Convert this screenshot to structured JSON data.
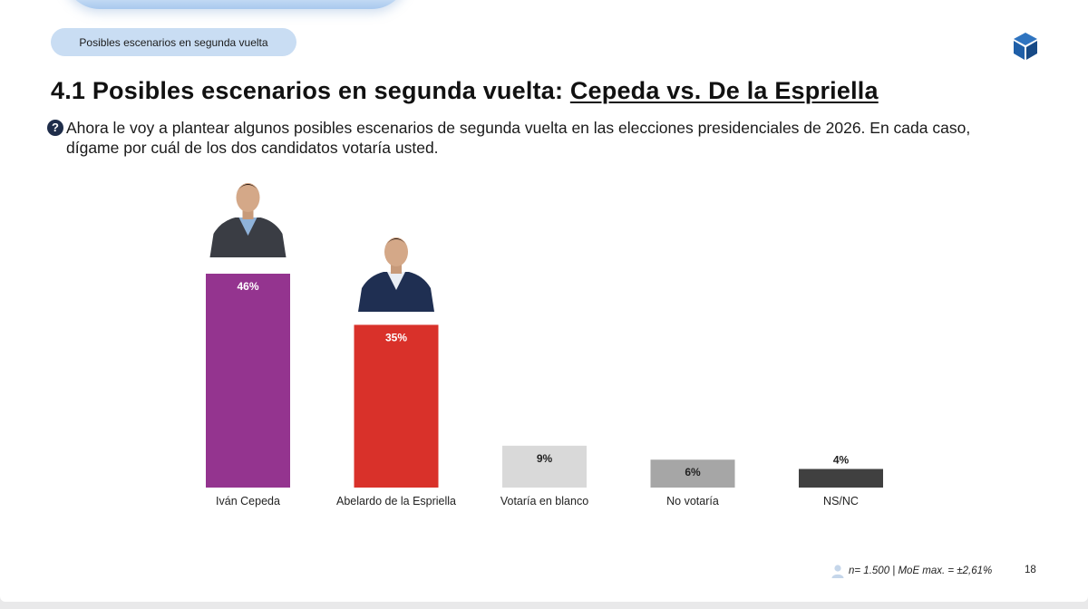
{
  "breadcrumb": "Posibles escenarios en segunda vuelta",
  "title": {
    "prefix": "4.1 Posibles escenarios en segunda vuelta: ",
    "highlight": "Cepeda vs. De la Espriella"
  },
  "question": {
    "icon": "question-circle-icon",
    "text": "Ahora le voy a plantear algunos posibles escenarios de segunda vuelta en las elecciones presidenciales de 2026. En cada caso, dígame por cuál de los dos candidatos votaría usted."
  },
  "chart_data": {
    "type": "bar",
    "categories": [
      "Iván Cepeda",
      "Abelardo de la Espriella",
      "Votaría en blanco",
      "No votaría",
      "NS/NC"
    ],
    "values": [
      46,
      35,
      9,
      6,
      4
    ],
    "value_labels": [
      "46%",
      "35%",
      "9%",
      "6%",
      "4%"
    ],
    "colors": [
      "#94348f",
      "#d9312a",
      "#d9d9d9",
      "#a6a6a6",
      "#404040"
    ],
    "label_colors": [
      "#ffffff",
      "#ffffff",
      "#222222",
      "#222222",
      "#222222"
    ],
    "ylim": [
      0,
      46
    ],
    "grid": false,
    "title": "",
    "xlabel": "",
    "ylabel": ""
  },
  "candidate_photos": [
    {
      "category": "Iván Cepeda",
      "icon": "candidate-photo-cepeda"
    },
    {
      "category": "Abelardo de la Espriella",
      "icon": "candidate-photo-espriella"
    }
  ],
  "footer": {
    "icon": "person-icon",
    "sample_note": "n= 1.500 | MoE max. = ±2,61%",
    "page_number": "18"
  },
  "colors": {
    "accent_pill": "#c9ddf3",
    "logo": "#1f5fa8"
  }
}
